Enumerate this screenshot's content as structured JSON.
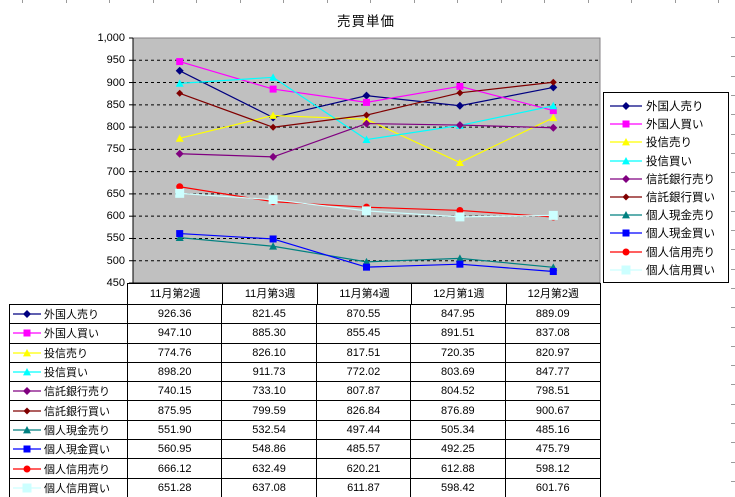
{
  "chart_data": {
    "type": "line",
    "title": "売買単価",
    "categories": [
      "11月第2週",
      "11月第3週",
      "11月第4週",
      "12月第1週",
      "12月第2週"
    ],
    "series": [
      {
        "name": "外国人売り",
        "color": "#000080",
        "marker": "diamond",
        "size": 4,
        "values": [
          926.36,
          821.45,
          870.55,
          847.95,
          889.09
        ]
      },
      {
        "name": "外国人買い",
        "color": "#FF00FF",
        "marker": "square",
        "size": 3.5,
        "values": [
          947.1,
          885.3,
          855.45,
          891.51,
          837.08
        ]
      },
      {
        "name": "投信売り",
        "color": "#FFFF00",
        "marker": "triangle",
        "size": 4,
        "values": [
          774.76,
          826.1,
          817.51,
          720.35,
          820.97
        ]
      },
      {
        "name": "投信買い",
        "color": "#00FFFF",
        "marker": "triangle",
        "size": 4,
        "values": [
          898.2,
          911.73,
          772.02,
          803.69,
          847.77
        ]
      },
      {
        "name": "信託銀行売り",
        "color": "#800080",
        "marker": "diamond",
        "size": 4,
        "values": [
          740.15,
          733.1,
          807.87,
          804.52,
          798.51
        ]
      },
      {
        "name": "信託銀行買い",
        "color": "#800000",
        "marker": "diamond",
        "size": 3.5,
        "values": [
          875.95,
          799.59,
          826.84,
          876.89,
          900.67
        ]
      },
      {
        "name": "個人現金売り",
        "color": "#008080",
        "marker": "triangle",
        "size": 4,
        "values": [
          551.9,
          532.54,
          497.44,
          505.34,
          485.16
        ]
      },
      {
        "name": "個人現金買い",
        "color": "#0000FF",
        "marker": "square",
        "size": 3.5,
        "values": [
          560.95,
          548.86,
          485.57,
          492.25,
          475.79
        ]
      },
      {
        "name": "個人信用売り",
        "color": "#FF0000",
        "marker": "circle",
        "size": 3.5,
        "values": [
          666.12,
          632.49,
          620.21,
          612.88,
          598.12
        ]
      },
      {
        "name": "個人信用買い",
        "color": "#CCFFFF",
        "marker": "square",
        "size": 4.5,
        "values": [
          651.28,
          637.08,
          611.87,
          598.42,
          601.76
        ]
      }
    ],
    "ylim": [
      450,
      1000
    ],
    "ytick_step": 50,
    "ytick_labels": [
      "1,000",
      "950",
      "900",
      "850",
      "800",
      "750",
      "700",
      "650",
      "600",
      "550",
      "500",
      "450"
    ],
    "grid": "horizontal-dashed",
    "legend_position": "right",
    "plot_bg": "#C0C0C0",
    "gridline_color": "#000000",
    "plot_border_color": "#848284",
    "value_decimals": 2
  }
}
